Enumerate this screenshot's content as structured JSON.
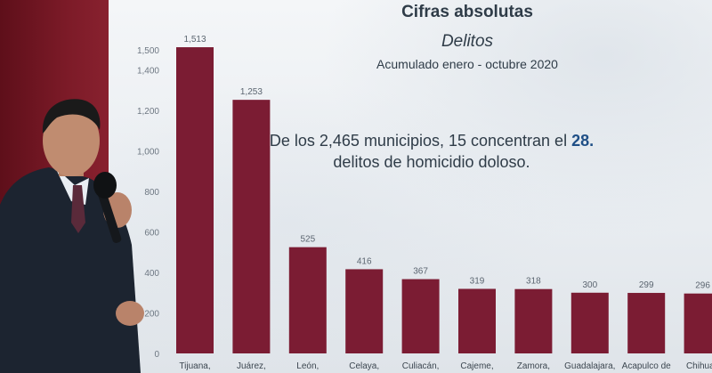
{
  "colors": {
    "bar": "#7b1c33",
    "wall": "#7a1a26",
    "screen": "#eef1f4",
    "text": "#2f3c48",
    "accent": "#1f4f86"
  },
  "chart_data": {
    "type": "bar",
    "title": "Cifras absolutas",
    "subtitle": "Delitos",
    "period": "Acumulado enero - octubre 2020",
    "categories": [
      "Tijuana,",
      "Juárez,",
      "León,",
      "Celaya,",
      "Culiacán,",
      "Cajeme,",
      "Zamora,",
      "Guadalajara,",
      "Acapulco de",
      "Chihuah"
    ],
    "values": [
      1513,
      1253,
      525,
      416,
      367,
      319,
      318,
      300,
      299,
      296
    ],
    "value_labels": [
      "1,513",
      "1,253",
      "525",
      "416",
      "367",
      "319",
      "318",
      "300",
      "299",
      "296"
    ],
    "yticks": [
      0,
      200,
      400,
      600,
      800,
      1000,
      1200,
      1400,
      1500
    ],
    "ytick_labels": [
      "0",
      "200",
      "400",
      "600",
      "800",
      "1,000",
      "1,200",
      "1,400",
      "1,500"
    ],
    "ylim": [
      0,
      1500
    ],
    "grid": false,
    "annotation": {
      "line1_prefix": "De los 2,465 municipios, 15 concentran el",
      "line1_highlight": "28.",
      "line2": "delitos de homicidio doloso."
    }
  }
}
